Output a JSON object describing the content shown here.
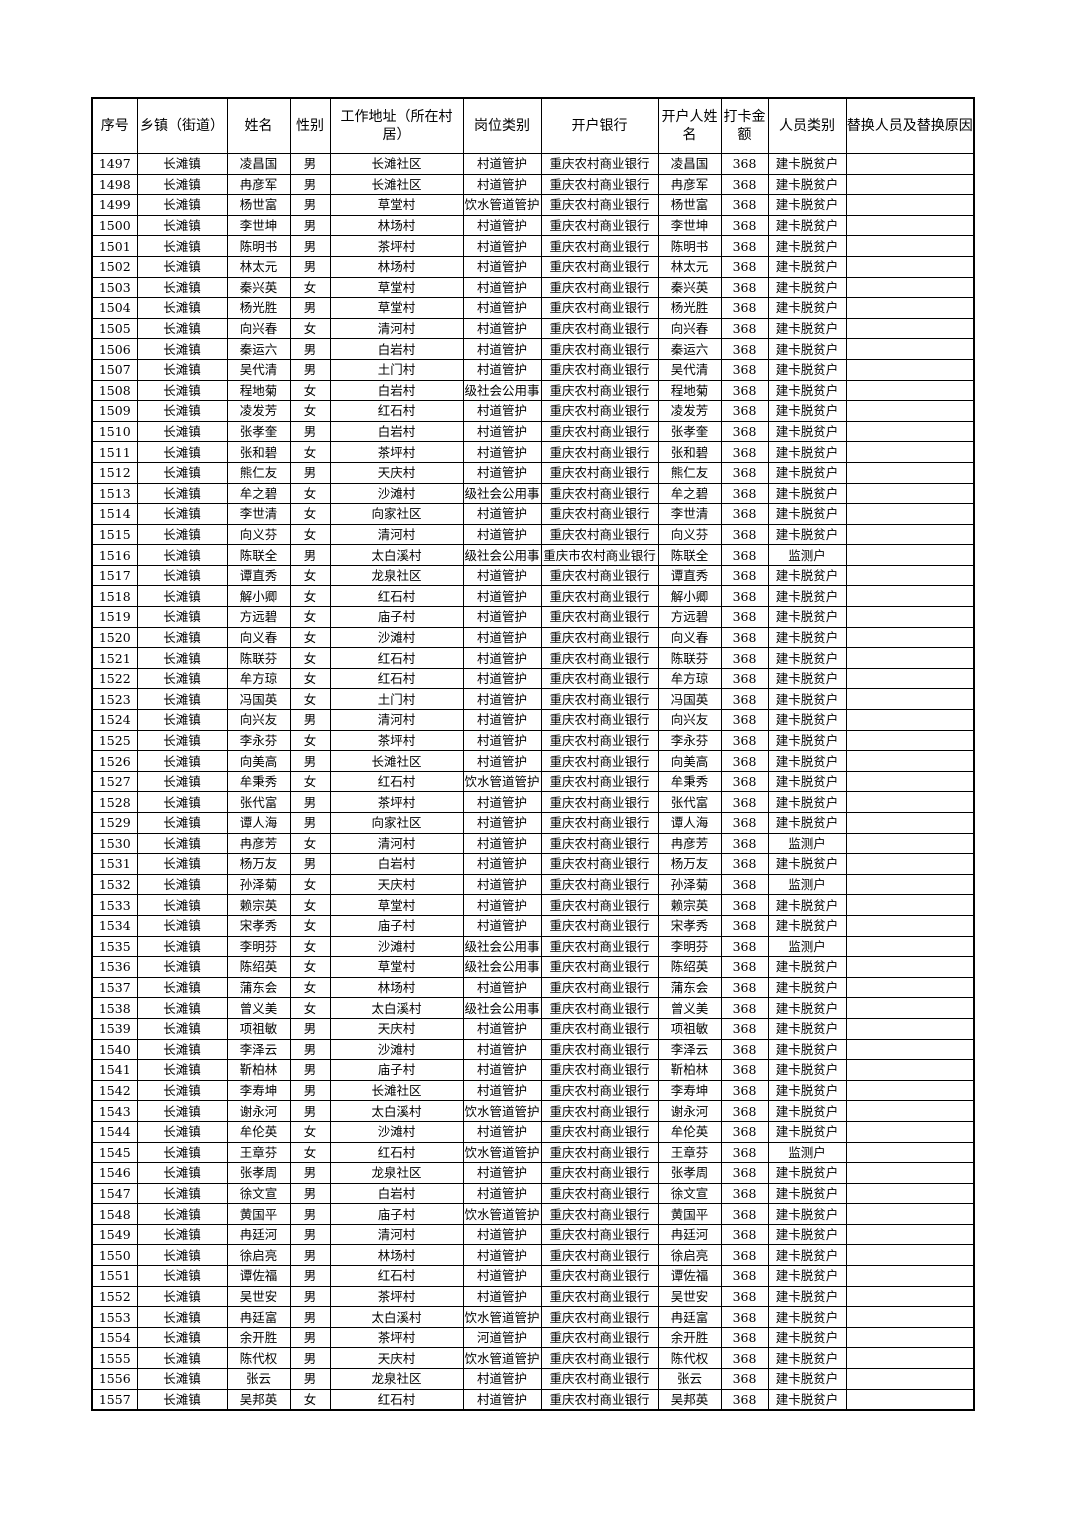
{
  "table": {
    "headers": [
      "序号",
      "乡镇（街道）",
      "姓名",
      "性别",
      "工作地址（所在村居）",
      "岗位类别",
      "开户银行",
      "开户人姓名",
      "打卡金额",
      "人员类别",
      "替换人员及替换原因"
    ],
    "rows": [
      [
        "1497",
        "长滩镇",
        "凌昌国",
        "男",
        "长滩社区",
        "村道管护",
        "重庆农村商业银行",
        "凌昌国",
        "368",
        "建卡脱贫户",
        ""
      ],
      [
        "1498",
        "长滩镇",
        "冉彦军",
        "男",
        "长滩社区",
        "村道管护",
        "重庆农村商业银行",
        "冉彦军",
        "368",
        "建卡脱贫户",
        ""
      ],
      [
        "1499",
        "长滩镇",
        "杨世富",
        "男",
        "草堂村",
        "饮水管道管护",
        "重庆农村商业银行",
        "杨世富",
        "368",
        "建卡脱贫户",
        ""
      ],
      [
        "1500",
        "长滩镇",
        "李世坤",
        "男",
        "林场村",
        "村道管护",
        "重庆农村商业银行",
        "李世坤",
        "368",
        "建卡脱贫户",
        ""
      ],
      [
        "1501",
        "长滩镇",
        "陈明书",
        "男",
        "茶坪村",
        "村道管护",
        "重庆农村商业银行",
        "陈明书",
        "368",
        "建卡脱贫户",
        ""
      ],
      [
        "1502",
        "长滩镇",
        "林太元",
        "男",
        "林场村",
        "村道管护",
        "重庆农村商业银行",
        "林太元",
        "368",
        "建卡脱贫户",
        ""
      ],
      [
        "1503",
        "长滩镇",
        "秦兴英",
        "女",
        "草堂村",
        "村道管护",
        "重庆农村商业银行",
        "秦兴英",
        "368",
        "建卡脱贫户",
        ""
      ],
      [
        "1504",
        "长滩镇",
        "杨光胜",
        "男",
        "草堂村",
        "村道管护",
        "重庆农村商业银行",
        "杨光胜",
        "368",
        "建卡脱贫户",
        ""
      ],
      [
        "1505",
        "长滩镇",
        "向兴春",
        "女",
        "清河村",
        "村道管护",
        "重庆农村商业银行",
        "向兴春",
        "368",
        "建卡脱贫户",
        ""
      ],
      [
        "1506",
        "长滩镇",
        "秦运六",
        "男",
        "白岩村",
        "村道管护",
        "重庆农村商业银行",
        "秦运六",
        "368",
        "建卡脱贫户",
        ""
      ],
      [
        "1507",
        "长滩镇",
        "吴代清",
        "男",
        "土门村",
        "村道管护",
        "重庆农村商业银行",
        "吴代清",
        "368",
        "建卡脱贫户",
        ""
      ],
      [
        "1508",
        "长滩镇",
        "程地菊",
        "女",
        "白岩村",
        "级社会公用事",
        "重庆农村商业银行",
        "程地菊",
        "368",
        "建卡脱贫户",
        ""
      ],
      [
        "1509",
        "长滩镇",
        "凌发芳",
        "女",
        "红石村",
        "村道管护",
        "重庆农村商业银行",
        "凌发芳",
        "368",
        "建卡脱贫户",
        ""
      ],
      [
        "1510",
        "长滩镇",
        "张孝奎",
        "男",
        "白岩村",
        "村道管护",
        "重庆农村商业银行",
        "张孝奎",
        "368",
        "建卡脱贫户",
        ""
      ],
      [
        "1511",
        "长滩镇",
        "张和碧",
        "女",
        "茶坪村",
        "村道管护",
        "重庆农村商业银行",
        "张和碧",
        "368",
        "建卡脱贫户",
        ""
      ],
      [
        "1512",
        "长滩镇",
        "熊仁友",
        "男",
        "天庆村",
        "村道管护",
        "重庆农村商业银行",
        "熊仁友",
        "368",
        "建卡脱贫户",
        ""
      ],
      [
        "1513",
        "长滩镇",
        "牟之碧",
        "女",
        "沙滩村",
        "级社会公用事",
        "重庆农村商业银行",
        "牟之碧",
        "368",
        "建卡脱贫户",
        ""
      ],
      [
        "1514",
        "长滩镇",
        "李世清",
        "女",
        "向家社区",
        "村道管护",
        "重庆农村商业银行",
        "李世清",
        "368",
        "建卡脱贫户",
        ""
      ],
      [
        "1515",
        "长滩镇",
        "向义芬",
        "女",
        "清河村",
        "村道管护",
        "重庆农村商业银行",
        "向义芬",
        "368",
        "建卡脱贫户",
        ""
      ],
      [
        "1516",
        "长滩镇",
        "陈联全",
        "男",
        "太白溪村",
        "级社会公用事",
        "重庆市农村商业银行",
        "陈联全",
        "368",
        "监测户",
        ""
      ],
      [
        "1517",
        "长滩镇",
        "谭直秀",
        "女",
        "龙泉社区",
        "村道管护",
        "重庆农村商业银行",
        "谭直秀",
        "368",
        "建卡脱贫户",
        ""
      ],
      [
        "1518",
        "长滩镇",
        "解小卿",
        "女",
        "红石村",
        "村道管护",
        "重庆农村商业银行",
        "解小卿",
        "368",
        "建卡脱贫户",
        ""
      ],
      [
        "1519",
        "长滩镇",
        "方远碧",
        "女",
        "庙子村",
        "村道管护",
        "重庆农村商业银行",
        "方远碧",
        "368",
        "建卡脱贫户",
        ""
      ],
      [
        "1520",
        "长滩镇",
        "向义春",
        "女",
        "沙滩村",
        "村道管护",
        "重庆农村商业银行",
        "向义春",
        "368",
        "建卡脱贫户",
        ""
      ],
      [
        "1521",
        "长滩镇",
        "陈联芬",
        "女",
        "红石村",
        "村道管护",
        "重庆农村商业银行",
        "陈联芬",
        "368",
        "建卡脱贫户",
        ""
      ],
      [
        "1522",
        "长滩镇",
        "牟方琼",
        "女",
        "红石村",
        "村道管护",
        "重庆农村商业银行",
        "牟方琼",
        "368",
        "建卡脱贫户",
        ""
      ],
      [
        "1523",
        "长滩镇",
        "冯国英",
        "女",
        "土门村",
        "村道管护",
        "重庆农村商业银行",
        "冯国英",
        "368",
        "建卡脱贫户",
        ""
      ],
      [
        "1524",
        "长滩镇",
        "向兴友",
        "男",
        "清河村",
        "村道管护",
        "重庆农村商业银行",
        "向兴友",
        "368",
        "建卡脱贫户",
        ""
      ],
      [
        "1525",
        "长滩镇",
        "李永芬",
        "女",
        "茶坪村",
        "村道管护",
        "重庆农村商业银行",
        "李永芬",
        "368",
        "建卡脱贫户",
        ""
      ],
      [
        "1526",
        "长滩镇",
        "向美高",
        "男",
        "长滩社区",
        "村道管护",
        "重庆农村商业银行",
        "向美高",
        "368",
        "建卡脱贫户",
        ""
      ],
      [
        "1527",
        "长滩镇",
        "牟秉秀",
        "女",
        "红石村",
        "饮水管道管护",
        "重庆农村商业银行",
        "牟秉秀",
        "368",
        "建卡脱贫户",
        ""
      ],
      [
        "1528",
        "长滩镇",
        "张代富",
        "男",
        "茶坪村",
        "村道管护",
        "重庆农村商业银行",
        "张代富",
        "368",
        "建卡脱贫户",
        ""
      ],
      [
        "1529",
        "长滩镇",
        "谭人海",
        "男",
        "向家社区",
        "村道管护",
        "重庆农村商业银行",
        "谭人海",
        "368",
        "建卡脱贫户",
        ""
      ],
      [
        "1530",
        "长滩镇",
        "冉彦芳",
        "女",
        "清河村",
        "村道管护",
        "重庆农村商业银行",
        "冉彦芳",
        "368",
        "监测户",
        ""
      ],
      [
        "1531",
        "长滩镇",
        "杨万友",
        "男",
        "白岩村",
        "村道管护",
        "重庆农村商业银行",
        "杨万友",
        "368",
        "建卡脱贫户",
        ""
      ],
      [
        "1532",
        "长滩镇",
        "孙泽菊",
        "女",
        "天庆村",
        "村道管护",
        "重庆农村商业银行",
        "孙泽菊",
        "368",
        "监测户",
        ""
      ],
      [
        "1533",
        "长滩镇",
        "赖宗英",
        "女",
        "草堂村",
        "村道管护",
        "重庆农村商业银行",
        "赖宗英",
        "368",
        "建卡脱贫户",
        ""
      ],
      [
        "1534",
        "长滩镇",
        "宋孝秀",
        "女",
        "庙子村",
        "村道管护",
        "重庆农村商业银行",
        "宋孝秀",
        "368",
        "建卡脱贫户",
        ""
      ],
      [
        "1535",
        "长滩镇",
        "李明芬",
        "女",
        "沙滩村",
        "级社会公用事",
        "重庆农村商业银行",
        "李明芬",
        "368",
        "监测户",
        ""
      ],
      [
        "1536",
        "长滩镇",
        "陈绍英",
        "女",
        "草堂村",
        "级社会公用事",
        "重庆农村商业银行",
        "陈绍英",
        "368",
        "建卡脱贫户",
        ""
      ],
      [
        "1537",
        "长滩镇",
        "蒲东会",
        "女",
        "林场村",
        "村道管护",
        "重庆农村商业银行",
        "蒲东会",
        "368",
        "建卡脱贫户",
        ""
      ],
      [
        "1538",
        "长滩镇",
        "曾义美",
        "女",
        "太白溪村",
        "级社会公用事",
        "重庆农村商业银行",
        "曾义美",
        "368",
        "建卡脱贫户",
        ""
      ],
      [
        "1539",
        "长滩镇",
        "项祖敏",
        "男",
        "天庆村",
        "村道管护",
        "重庆农村商业银行",
        "项祖敏",
        "368",
        "建卡脱贫户",
        ""
      ],
      [
        "1540",
        "长滩镇",
        "李泽云",
        "男",
        "沙滩村",
        "村道管护",
        "重庆农村商业银行",
        "李泽云",
        "368",
        "建卡脱贫户",
        ""
      ],
      [
        "1541",
        "长滩镇",
        "靳柏林",
        "男",
        "庙子村",
        "村道管护",
        "重庆农村商业银行",
        "靳柏林",
        "368",
        "建卡脱贫户",
        ""
      ],
      [
        "1542",
        "长滩镇",
        "李寿坤",
        "男",
        "长滩社区",
        "村道管护",
        "重庆农村商业银行",
        "李寿坤",
        "368",
        "建卡脱贫户",
        ""
      ],
      [
        "1543",
        "长滩镇",
        "谢永河",
        "男",
        "太白溪村",
        "饮水管道管护",
        "重庆农村商业银行",
        "谢永河",
        "368",
        "建卡脱贫户",
        ""
      ],
      [
        "1544",
        "长滩镇",
        "牟伦英",
        "女",
        "沙滩村",
        "村道管护",
        "重庆农村商业银行",
        "牟伦英",
        "368",
        "建卡脱贫户",
        ""
      ],
      [
        "1545",
        "长滩镇",
        "王章芬",
        "女",
        "红石村",
        "饮水管道管护",
        "重庆农村商业银行",
        "王章芬",
        "368",
        "监测户",
        ""
      ],
      [
        "1546",
        "长滩镇",
        "张孝周",
        "男",
        "龙泉社区",
        "村道管护",
        "重庆农村商业银行",
        "张孝周",
        "368",
        "建卡脱贫户",
        ""
      ],
      [
        "1547",
        "长滩镇",
        "徐文宣",
        "男",
        "白岩村",
        "村道管护",
        "重庆农村商业银行",
        "徐文宣",
        "368",
        "建卡脱贫户",
        ""
      ],
      [
        "1548",
        "长滩镇",
        "黄国平",
        "男",
        "庙子村",
        "饮水管道管护",
        "重庆农村商业银行",
        "黄国平",
        "368",
        "建卡脱贫户",
        ""
      ],
      [
        "1549",
        "长滩镇",
        "冉廷河",
        "男",
        "清河村",
        "村道管护",
        "重庆农村商业银行",
        "冉廷河",
        "368",
        "建卡脱贫户",
        ""
      ],
      [
        "1550",
        "长滩镇",
        "徐启亮",
        "男",
        "林场村",
        "村道管护",
        "重庆农村商业银行",
        "徐启亮",
        "368",
        "建卡脱贫户",
        ""
      ],
      [
        "1551",
        "长滩镇",
        "谭佐福",
        "男",
        "红石村",
        "村道管护",
        "重庆农村商业银行",
        "谭佐福",
        "368",
        "建卡脱贫户",
        ""
      ],
      [
        "1552",
        "长滩镇",
        "吴世安",
        "男",
        "茶坪村",
        "村道管护",
        "重庆农村商业银行",
        "吴世安",
        "368",
        "建卡脱贫户",
        ""
      ],
      [
        "1553",
        "长滩镇",
        "冉廷富",
        "男",
        "太白溪村",
        "饮水管道管护",
        "重庆农村商业银行",
        "冉廷富",
        "368",
        "建卡脱贫户",
        ""
      ],
      [
        "1554",
        "长滩镇",
        "余开胜",
        "男",
        "茶坪村",
        "河道管护",
        "重庆农村商业银行",
        "余开胜",
        "368",
        "建卡脱贫户",
        ""
      ],
      [
        "1555",
        "长滩镇",
        "陈代权",
        "男",
        "天庆村",
        "饮水管道管护",
        "重庆农村商业银行",
        "陈代权",
        "368",
        "建卡脱贫户",
        ""
      ],
      [
        "1556",
        "长滩镇",
        "张云",
        "男",
        "龙泉社区",
        "村道管护",
        "重庆农村商业银行",
        "张云",
        "368",
        "建卡脱贫户",
        ""
      ],
      [
        "1557",
        "长滩镇",
        "吴邦英",
        "女",
        "红石村",
        "村道管护",
        "重庆农村商业银行",
        "吴邦英",
        "368",
        "建卡脱贫户",
        ""
      ]
    ]
  }
}
